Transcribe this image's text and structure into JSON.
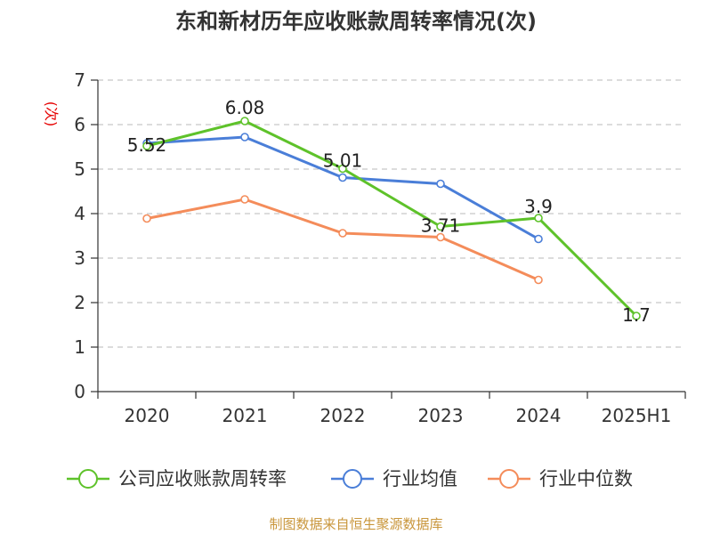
{
  "chart_data": {
    "type": "line",
    "title": "东和新材历年应收账款周转率情况(次)",
    "ylabel": "(次)",
    "xlabel": "",
    "categories": [
      "2020",
      "2021",
      "2022",
      "2023",
      "2024",
      "2025H1"
    ],
    "ylim": [
      0,
      7
    ],
    "yticks": [
      0,
      1,
      2,
      3,
      4,
      5,
      6,
      7
    ],
    "grid": true,
    "legend_position": "bottom",
    "series": [
      {
        "name": "公司应收账款周转率",
        "color": "#5ec22a",
        "values": [
          5.52,
          6.08,
          5.01,
          3.71,
          3.9,
          1.7
        ],
        "show_labels": true
      },
      {
        "name": "行业均值",
        "color": "#4a7ed8",
        "values": [
          5.58,
          5.72,
          4.81,
          4.67,
          3.43,
          null
        ],
        "show_labels": false
      },
      {
        "name": "行业中位数",
        "color": "#f48c5a",
        "values": [
          3.89,
          4.32,
          3.56,
          3.47,
          2.51,
          null
        ],
        "show_labels": false
      }
    ],
    "data_labels": [
      "5.52",
      "6.08",
      "5.01",
      "3.71",
      "3.9",
      "1.7"
    ]
  },
  "source": "制图数据来自恒生聚源数据库"
}
